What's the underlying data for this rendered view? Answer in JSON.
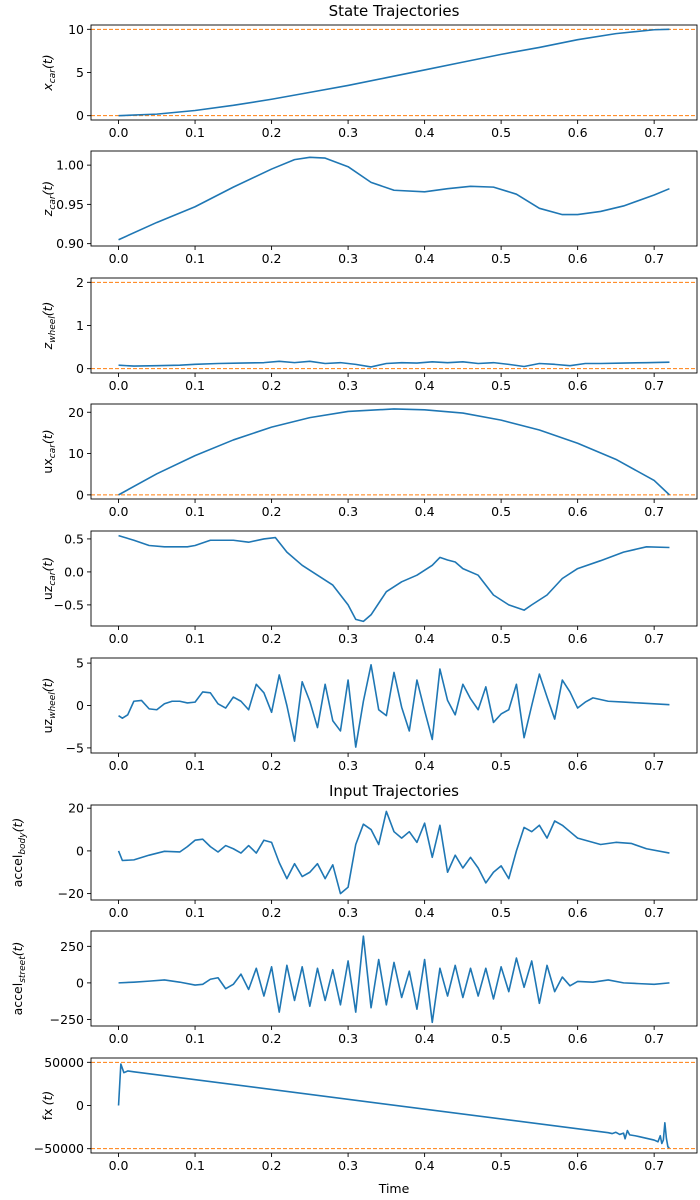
{
  "colors": {
    "series": "#1f77b4",
    "bound": "#ff7f0e",
    "axis": "#000000"
  },
  "chart_data": [
    {
      "type": "line",
      "title": "State Trajectories",
      "ylabel": {
        "base": "x",
        "sub": "car",
        "suffix": "(t)",
        "italic": true
      },
      "xlim": [
        -0.036,
        0.756
      ],
      "ylim": [
        -0.5,
        10.5
      ],
      "xticks": [
        0.0,
        0.1,
        0.2,
        0.3,
        0.4,
        0.5,
        0.6,
        0.7
      ],
      "yticks": [
        0,
        5,
        10
      ],
      "ytick_labels": [
        "0",
        "5",
        "10"
      ],
      "bounds": [
        0,
        10
      ],
      "series": [
        {
          "x": [
            0,
            0.05,
            0.1,
            0.15,
            0.2,
            0.25,
            0.3,
            0.35,
            0.4,
            0.45,
            0.5,
            0.55,
            0.6,
            0.65,
            0.7,
            0.72
          ],
          "y": [
            0,
            0.18,
            0.6,
            1.2,
            1.9,
            2.7,
            3.5,
            4.4,
            5.3,
            6.2,
            7.1,
            7.9,
            8.8,
            9.5,
            9.95,
            10
          ]
        }
      ]
    },
    {
      "type": "line",
      "ylabel": {
        "base": "z",
        "sub": "car",
        "suffix": "(t)",
        "italic": true
      },
      "xlim": [
        -0.036,
        0.756
      ],
      "ylim": [
        0.897,
        1.018
      ],
      "xticks": [
        0.0,
        0.1,
        0.2,
        0.3,
        0.4,
        0.5,
        0.6,
        0.7
      ],
      "yticks": [
        0.9,
        0.95,
        1.0
      ],
      "ytick_labels": [
        "0.90",
        "0.95",
        "1.00"
      ],
      "bounds": [],
      "series": [
        {
          "x": [
            0,
            0.05,
            0.1,
            0.15,
            0.2,
            0.23,
            0.25,
            0.27,
            0.3,
            0.33,
            0.36,
            0.4,
            0.43,
            0.46,
            0.49,
            0.52,
            0.55,
            0.58,
            0.6,
            0.63,
            0.66,
            0.7,
            0.72
          ],
          "y": [
            0.905,
            0.927,
            0.947,
            0.972,
            0.995,
            1.007,
            1.01,
            1.009,
            0.998,
            0.978,
            0.968,
            0.966,
            0.97,
            0.973,
            0.972,
            0.963,
            0.945,
            0.937,
            0.937,
            0.941,
            0.948,
            0.962,
            0.97
          ]
        }
      ]
    },
    {
      "type": "line",
      "ylabel": {
        "base": "z",
        "sub": "wheel",
        "suffix": "(t)",
        "italic": true
      },
      "xlim": [
        -0.036,
        0.756
      ],
      "ylim": [
        -0.1,
        2.1
      ],
      "xticks": [
        0.0,
        0.1,
        0.2,
        0.3,
        0.4,
        0.5,
        0.6,
        0.7
      ],
      "yticks": [
        0,
        1,
        2
      ],
      "ytick_labels": [
        "0",
        "1",
        "2"
      ],
      "bounds": [
        0,
        2
      ],
      "series": [
        {
          "x": [
            0,
            0.02,
            0.05,
            0.08,
            0.1,
            0.13,
            0.16,
            0.19,
            0.21,
            0.23,
            0.25,
            0.27,
            0.29,
            0.31,
            0.33,
            0.35,
            0.37,
            0.39,
            0.41,
            0.43,
            0.45,
            0.47,
            0.49,
            0.51,
            0.53,
            0.55,
            0.57,
            0.59,
            0.61,
            0.63,
            0.66,
            0.69,
            0.72
          ],
          "y": [
            0.08,
            0.06,
            0.07,
            0.08,
            0.1,
            0.12,
            0.13,
            0.14,
            0.17,
            0.14,
            0.17,
            0.12,
            0.14,
            0.1,
            0.04,
            0.12,
            0.14,
            0.13,
            0.16,
            0.14,
            0.16,
            0.12,
            0.14,
            0.1,
            0.05,
            0.12,
            0.1,
            0.07,
            0.12,
            0.12,
            0.13,
            0.14,
            0.15
          ]
        }
      ]
    },
    {
      "type": "line",
      "ylabel": {
        "base": "ux",
        "sub": "car",
        "suffix": "(t)",
        "italic": false
      },
      "xlim": [
        -0.036,
        0.756
      ],
      "ylim": [
        -1.0,
        22.0
      ],
      "xticks": [
        0.0,
        0.1,
        0.2,
        0.3,
        0.4,
        0.5,
        0.6,
        0.7
      ],
      "yticks": [
        0,
        10,
        20
      ],
      "ytick_labels": [
        "0",
        "10",
        "20"
      ],
      "bounds": [
        0
      ],
      "series": [
        {
          "x": [
            0,
            0.05,
            0.1,
            0.15,
            0.2,
            0.25,
            0.3,
            0.36,
            0.4,
            0.45,
            0.5,
            0.55,
            0.6,
            0.65,
            0.7,
            0.72
          ],
          "y": [
            0,
            5.1,
            9.5,
            13.3,
            16.4,
            18.7,
            20.2,
            20.8,
            20.6,
            19.8,
            18.1,
            15.7,
            12.5,
            8.6,
            3.5,
            0
          ]
        }
      ]
    },
    {
      "type": "line",
      "ylabel": {
        "base": "uz",
        "sub": "car",
        "suffix": "(t)",
        "italic": false
      },
      "xlim": [
        -0.036,
        0.756
      ],
      "ylim": [
        -0.82,
        0.62
      ],
      "xticks": [
        0.0,
        0.1,
        0.2,
        0.3,
        0.4,
        0.5,
        0.6,
        0.7
      ],
      "yticks": [
        -0.5,
        0.0,
        0.5
      ],
      "ytick_labels": [
        "−0.5",
        "0.0",
        "0.5"
      ],
      "bounds": [],
      "series": [
        {
          "x": [
            0,
            0.02,
            0.04,
            0.06,
            0.09,
            0.1,
            0.12,
            0.15,
            0.17,
            0.19,
            0.205,
            0.22,
            0.24,
            0.26,
            0.28,
            0.3,
            0.31,
            0.32,
            0.33,
            0.35,
            0.37,
            0.39,
            0.41,
            0.42,
            0.43,
            0.44,
            0.45,
            0.47,
            0.49,
            0.51,
            0.53,
            0.54,
            0.56,
            0.58,
            0.6,
            0.63,
            0.66,
            0.69,
            0.72
          ],
          "y": [
            0.55,
            0.48,
            0.4,
            0.38,
            0.38,
            0.4,
            0.48,
            0.48,
            0.45,
            0.5,
            0.52,
            0.3,
            0.1,
            -0.05,
            -0.2,
            -0.5,
            -0.72,
            -0.75,
            -0.65,
            -0.3,
            -0.15,
            -0.05,
            0.1,
            0.22,
            0.18,
            0.15,
            0.05,
            -0.05,
            -0.35,
            -0.5,
            -0.58,
            -0.5,
            -0.35,
            -0.1,
            0.05,
            0.17,
            0.3,
            0.38,
            0.37
          ]
        }
      ]
    },
    {
      "type": "line",
      "ylabel": {
        "base": "uz",
        "sub": "wheel",
        "suffix": "(t)",
        "italic": false
      },
      "xlim": [
        -0.036,
        0.756
      ],
      "ylim": [
        -5.6,
        5.6
      ],
      "xticks": [
        0.0,
        0.1,
        0.2,
        0.3,
        0.4,
        0.5,
        0.6,
        0.7
      ],
      "yticks": [
        -5,
        0,
        5
      ],
      "ytick_labels": [
        "−5",
        "0",
        "5"
      ],
      "bounds": [],
      "series": [
        {
          "x": [
            0,
            0.005,
            0.012,
            0.02,
            0.03,
            0.04,
            0.05,
            0.06,
            0.07,
            0.08,
            0.09,
            0.1,
            0.11,
            0.12,
            0.13,
            0.14,
            0.15,
            0.16,
            0.17,
            0.18,
            0.19,
            0.2,
            0.21,
            0.22,
            0.23,
            0.24,
            0.25,
            0.26,
            0.27,
            0.28,
            0.29,
            0.3,
            0.31,
            0.32,
            0.33,
            0.34,
            0.35,
            0.36,
            0.37,
            0.38,
            0.39,
            0.4,
            0.41,
            0.42,
            0.43,
            0.44,
            0.45,
            0.46,
            0.47,
            0.48,
            0.49,
            0.5,
            0.51,
            0.52,
            0.53,
            0.54,
            0.55,
            0.56,
            0.57,
            0.58,
            0.59,
            0.6,
            0.61,
            0.62,
            0.64,
            0.66,
            0.68,
            0.7,
            0.72
          ],
          "y": [
            -1.2,
            -1.5,
            -1.1,
            0.5,
            0.6,
            -0.4,
            -0.5,
            0.2,
            0.5,
            0.5,
            0.3,
            0.4,
            1.6,
            1.5,
            0.2,
            -0.3,
            1.0,
            0.5,
            -0.5,
            2.5,
            1.5,
            -0.8,
            3.6,
            0.0,
            -4.2,
            2.8,
            0.5,
            -2.6,
            2.5,
            -1.8,
            -3.0,
            3.0,
            -4.9,
            0.5,
            4.8,
            -0.5,
            -1.2,
            3.9,
            -0.2,
            -3.0,
            3.0,
            -0.6,
            -4.0,
            4.3,
            0.6,
            -1.1,
            2.5,
            0.8,
            -0.5,
            2.2,
            -2.0,
            -1.0,
            -0.5,
            2.5,
            -3.8,
            0.0,
            3.7,
            1.0,
            -1.6,
            3.0,
            1.6,
            -0.3,
            0.4,
            0.9,
            0.5,
            0.4,
            0.3,
            0.2,
            0.1
          ]
        }
      ]
    },
    {
      "type": "line",
      "title": "Input Trajectories",
      "ylabel": {
        "base": "accel",
        "sub": "body",
        "suffix": "(t)",
        "italic": false
      },
      "xlim": [
        -0.036,
        0.756
      ],
      "ylim": [
        -23.0,
        21.5
      ],
      "xticks": [
        0.0,
        0.1,
        0.2,
        0.3,
        0.4,
        0.5,
        0.6,
        0.7
      ],
      "yticks": [
        -20,
        0,
        20
      ],
      "ytick_labels": [
        "−20",
        "0",
        "20"
      ],
      "bounds": [],
      "series": [
        {
          "x": [
            0,
            0.005,
            0.02,
            0.04,
            0.06,
            0.08,
            0.09,
            0.1,
            0.11,
            0.12,
            0.13,
            0.14,
            0.15,
            0.16,
            0.17,
            0.18,
            0.19,
            0.2,
            0.21,
            0.22,
            0.23,
            0.24,
            0.25,
            0.26,
            0.27,
            0.28,
            0.29,
            0.3,
            0.31,
            0.32,
            0.33,
            0.34,
            0.35,
            0.36,
            0.37,
            0.38,
            0.39,
            0.4,
            0.41,
            0.42,
            0.43,
            0.44,
            0.45,
            0.46,
            0.47,
            0.48,
            0.49,
            0.5,
            0.51,
            0.52,
            0.53,
            0.54,
            0.55,
            0.56,
            0.57,
            0.58,
            0.59,
            0.6,
            0.61,
            0.63,
            0.65,
            0.67,
            0.69,
            0.72
          ],
          "y": [
            0,
            -4.5,
            -4.2,
            -2.0,
            -0.2,
            -0.5,
            2.0,
            5.0,
            5.5,
            2.0,
            -0.5,
            2.5,
            1.0,
            -1.0,
            2.5,
            -1.0,
            5.0,
            4.0,
            -5.5,
            -13.0,
            -6.0,
            -12.0,
            -10.0,
            -6.0,
            -13.0,
            -6.5,
            -20.0,
            -17.0,
            3.0,
            12.5,
            10.0,
            3.0,
            18.5,
            9.0,
            6.0,
            9.0,
            4.0,
            13.0,
            -3.0,
            12.0,
            -10.0,
            -2.0,
            -8.0,
            -3.0,
            -8.0,
            -15.0,
            -10.0,
            -7.0,
            -13.0,
            0.0,
            11.0,
            9.0,
            12.0,
            6.0,
            14.0,
            12.0,
            9.0,
            6.0,
            5.0,
            3.0,
            4.0,
            3.5,
            1.0,
            -1.0
          ]
        }
      ]
    },
    {
      "type": "line",
      "ylabel": {
        "base": "accel",
        "sub": "street",
        "suffix": "(t)",
        "italic": false
      },
      "xlim": [
        -0.036,
        0.756
      ],
      "ylim": [
        -295,
        355
      ],
      "xticks": [
        0.0,
        0.1,
        0.2,
        0.3,
        0.4,
        0.5,
        0.6,
        0.7
      ],
      "yticks": [
        -250,
        0,
        250
      ],
      "ytick_labels": [
        "−250",
        "0",
        "250"
      ],
      "bounds": [],
      "series": [
        {
          "x": [
            0,
            0.02,
            0.04,
            0.06,
            0.08,
            0.1,
            0.11,
            0.12,
            0.13,
            0.14,
            0.15,
            0.16,
            0.17,
            0.18,
            0.19,
            0.2,
            0.21,
            0.22,
            0.23,
            0.24,
            0.25,
            0.26,
            0.27,
            0.28,
            0.29,
            0.3,
            0.31,
            0.32,
            0.33,
            0.34,
            0.35,
            0.36,
            0.37,
            0.38,
            0.39,
            0.4,
            0.41,
            0.42,
            0.43,
            0.44,
            0.45,
            0.46,
            0.47,
            0.48,
            0.49,
            0.5,
            0.51,
            0.52,
            0.53,
            0.54,
            0.55,
            0.56,
            0.57,
            0.58,
            0.59,
            0.6,
            0.62,
            0.64,
            0.66,
            0.68,
            0.7,
            0.72
          ],
          "y": [
            0,
            5,
            12,
            20,
            5,
            -15,
            -10,
            25,
            35,
            -40,
            -10,
            60,
            -45,
            100,
            -90,
            110,
            -200,
            120,
            -120,
            110,
            -160,
            100,
            -120,
            90,
            -150,
            150,
            -200,
            320,
            -170,
            160,
            -150,
            140,
            -100,
            80,
            -180,
            160,
            -270,
            100,
            -90,
            120,
            -100,
            100,
            -90,
            100,
            -110,
            110,
            -60,
            170,
            -30,
            150,
            -140,
            120,
            -60,
            40,
            -20,
            10,
            5,
            20,
            0,
            -5,
            -10,
            0
          ]
        }
      ]
    },
    {
      "type": "line",
      "ylabel": {
        "base": "fx",
        "sub": "",
        "suffix": "(t)",
        "italic": false
      },
      "xlabel": "Time",
      "xlim": [
        -0.036,
        0.756
      ],
      "ylim": [
        -55000,
        55000
      ],
      "xticks": [
        0.0,
        0.1,
        0.2,
        0.3,
        0.4,
        0.5,
        0.6,
        0.7
      ],
      "yticks": [
        -50000,
        0,
        50000
      ],
      "ytick_labels": [
        "−50000",
        "0",
        "50000"
      ],
      "bounds": [
        -50000,
        50000
      ],
      "series": [
        {
          "x": [
            0,
            0.003,
            0.007,
            0.012,
            0.02,
            0.64,
            0.645,
            0.65,
            0.655,
            0.66,
            0.662,
            0.665,
            0.668,
            0.675,
            0.68,
            0.69,
            0.7,
            0.705,
            0.708,
            0.71,
            0.712,
            0.714,
            0.716,
            0.718,
            0.72
          ],
          "y": [
            0,
            48000,
            38000,
            40000,
            39000,
            -31500,
            -32500,
            -31000,
            -33500,
            -32000,
            -38500,
            -29000,
            -34000,
            -35000,
            -36000,
            -38000,
            -40000,
            -42000,
            -35000,
            -44000,
            -40000,
            -20000,
            -38000,
            -48000,
            -49000
          ]
        }
      ]
    }
  ]
}
